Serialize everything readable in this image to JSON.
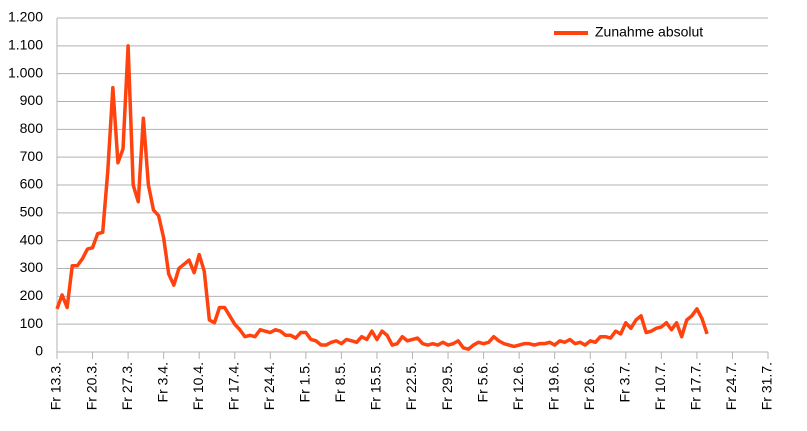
{
  "chart_data": {
    "type": "line",
    "categories": [
      "Fr 13.3.",
      null,
      null,
      null,
      null,
      null,
      null,
      "Fr 20.3.",
      null,
      null,
      null,
      null,
      null,
      null,
      "Fr 27.3.",
      null,
      null,
      null,
      null,
      null,
      null,
      "Fr 3.4.",
      null,
      null,
      null,
      null,
      null,
      null,
      "Fr 10.4.",
      null,
      null,
      null,
      null,
      null,
      null,
      "Fr 17.4.",
      null,
      null,
      null,
      null,
      null,
      null,
      "Fr 24.4.",
      null,
      null,
      null,
      null,
      null,
      null,
      "Fr 1.5.",
      null,
      null,
      null,
      null,
      null,
      null,
      "Fr 8.5.",
      null,
      null,
      null,
      null,
      null,
      null,
      "Fr 15.5.",
      null,
      null,
      null,
      null,
      null,
      null,
      "Fr 22.5.",
      null,
      null,
      null,
      null,
      null,
      null,
      "Fr 29.5.",
      null,
      null,
      null,
      null,
      null,
      null,
      "Fr 5.6.",
      null,
      null,
      null,
      null,
      null,
      null,
      "Fr 12.6.",
      null,
      null,
      null,
      null,
      null,
      null,
      "Fr 19.6.",
      null,
      null,
      null,
      null,
      null,
      null,
      "Fr 26.6.",
      null,
      null,
      null,
      null,
      null,
      null,
      "Fr 3.7.",
      null,
      null,
      null,
      null,
      null,
      null,
      "Fr 10.7.",
      null,
      null,
      null,
      null,
      null,
      null,
      "Fr 17.7.",
      null,
      null,
      null,
      null,
      null,
      null,
      "Fr 24.7.",
      null,
      null,
      null,
      null,
      null,
      null,
      "Fr 31.7."
    ],
    "series": [
      {
        "name": "Zunahme absolut",
        "color": "#ff420e",
        "values": [
          155,
          205,
          160,
          310,
          310,
          335,
          370,
          375,
          425,
          430,
          650,
          950,
          680,
          730,
          1100,
          600,
          540,
          840,
          600,
          510,
          490,
          410,
          280,
          240,
          300,
          315,
          330,
          285,
          350,
          290,
          115,
          105,
          160,
          160,
          130,
          100,
          80,
          55,
          60,
          55,
          80,
          75,
          70,
          80,
          75,
          60,
          60,
          50,
          70,
          70,
          45,
          40,
          25,
          25,
          35,
          40,
          30,
          45,
          40,
          35,
          55,
          45,
          75,
          45,
          75,
          60,
          25,
          30,
          55,
          40,
          45,
          50,
          30,
          25,
          30,
          25,
          35,
          25,
          30,
          40,
          15,
          10,
          25,
          35,
          30,
          35,
          55,
          40,
          30,
          25,
          20,
          25,
          30,
          30,
          25,
          30,
          30,
          35,
          25,
          40,
          35,
          45,
          30,
          35,
          25,
          40,
          35,
          55,
          55,
          50,
          75,
          65,
          105,
          85,
          115,
          130,
          70,
          75,
          85,
          90,
          105,
          80,
          105,
          55,
          115,
          130,
          155,
          120,
          65,
          null,
          null,
          null,
          null,
          null,
          null,
          null,
          null,
          null,
          null,
          null,
          null
        ]
      }
    ],
    "ylim": [
      0,
      1200
    ],
    "yticks": [
      0,
      100,
      200,
      300,
      400,
      500,
      600,
      700,
      800,
      900,
      {
        "value": 1000,
        "label": "1.000"
      },
      {
        "value": 1100,
        "label": "1.100"
      },
      {
        "value": 1200,
        "label": "1.200"
      }
    ],
    "grid": true,
    "legend": "top-right"
  }
}
